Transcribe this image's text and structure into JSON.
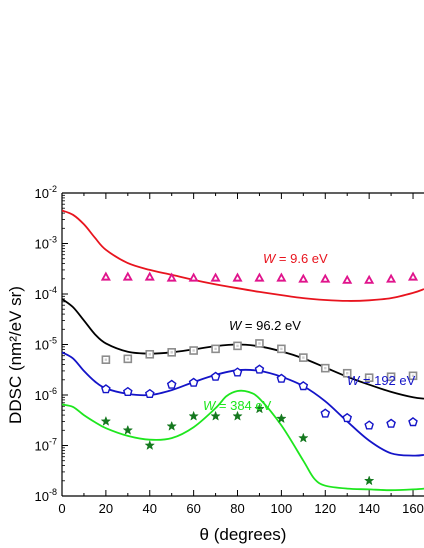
{
  "chart_data": {
    "type": "line",
    "xlabel": "θ (degrees)",
    "ylabel": "DDSC (nm²/eV sr)",
    "xlim": [
      0,
      165
    ],
    "ylim_log10": [
      -8,
      -2
    ],
    "y_scale": "log",
    "x_ticks": [
      0,
      20,
      40,
      60,
      80,
      100,
      120,
      140,
      160
    ],
    "y_ticks": [
      {
        "base": "10",
        "exp": "-2",
        "value": 0.01
      },
      {
        "base": "10",
        "exp": "-3",
        "value": 0.001
      },
      {
        "base": "10",
        "exp": "-4",
        "value": 0.0001
      },
      {
        "base": "10",
        "exp": "-5",
        "value": 1e-05
      },
      {
        "base": "10",
        "exp": "-6",
        "value": 1e-06
      },
      {
        "base": "10",
        "exp": "-7",
        "value": 1e-07
      },
      {
        "base": "10",
        "exp": "-8",
        "value": 1e-08
      }
    ],
    "grid": false,
    "series": [
      {
        "label": "W = 9.6 eV",
        "label_var": "W",
        "label_rest": " = 9.6 eV",
        "color": "#e8141e",
        "curve": [
          [
            0,
            0.0045
          ],
          [
            5,
            0.0037
          ],
          [
            10,
            0.0024
          ],
          [
            15,
            0.0013
          ],
          [
            20,
            0.00075
          ],
          [
            30,
            0.00041
          ],
          [
            40,
            0.0003
          ],
          [
            50,
            0.00024
          ],
          [
            60,
            0.00019
          ],
          [
            70,
            0.000155
          ],
          [
            80,
            0.00013
          ],
          [
            90,
            0.00011
          ],
          [
            100,
            9.5e-05
          ],
          [
            110,
            8.3e-05
          ],
          [
            120,
            7.6e-05
          ],
          [
            130,
            7.3e-05
          ],
          [
            140,
            7.5e-05
          ],
          [
            150,
            8.3e-05
          ],
          [
            160,
            0.000105
          ],
          [
            165,
            0.000125
          ]
        ],
        "marker": "triangle",
        "marker_color": "#e0148c",
        "points": [
          [
            20,
            0.00022
          ],
          [
            30,
            0.00022
          ],
          [
            40,
            0.00022
          ],
          [
            50,
            0.00021
          ],
          [
            60,
            0.00021
          ],
          [
            70,
            0.00021
          ],
          [
            80,
            0.00021
          ],
          [
            90,
            0.00021
          ],
          [
            100,
            0.00021
          ],
          [
            110,
            0.0002
          ],
          [
            120,
            0.0002
          ],
          [
            130,
            0.00019
          ],
          [
            140,
            0.00019
          ],
          [
            150,
            0.0002
          ],
          [
            160,
            0.00022
          ]
        ]
      },
      {
        "label": "W = 96.2 eV",
        "label_var": "W",
        "label_rest": " = 96.2 eV",
        "color": "#000000",
        "curve": [
          [
            0,
            8e-05
          ],
          [
            5,
            5.5e-05
          ],
          [
            10,
            3e-05
          ],
          [
            15,
            1.6e-05
          ],
          [
            20,
            1.05e-05
          ],
          [
            30,
            7.2e-06
          ],
          [
            40,
            6.6e-06
          ],
          [
            50,
            7e-06
          ],
          [
            60,
            8e-06
          ],
          [
            70,
            9.3e-06
          ],
          [
            80,
            1e-05
          ],
          [
            90,
            9.2e-06
          ],
          [
            100,
            7.3e-06
          ],
          [
            110,
            5.3e-06
          ],
          [
            120,
            3.5e-06
          ],
          [
            130,
            2.3e-06
          ],
          [
            140,
            1.6e-06
          ],
          [
            150,
            1.15e-06
          ],
          [
            160,
            9e-07
          ],
          [
            165,
            8.5e-07
          ]
        ],
        "marker": "square",
        "marker_color": "#8c8c8c",
        "points": [
          [
            20,
            5e-06
          ],
          [
            30,
            5.2e-06
          ],
          [
            40,
            6.4e-06
          ],
          [
            50,
            7e-06
          ],
          [
            60,
            7.6e-06
          ],
          [
            70,
            8.2e-06
          ],
          [
            80,
            9.4e-06
          ],
          [
            90,
            1.05e-05
          ],
          [
            100,
            8.2e-06
          ],
          [
            110,
            5.5e-06
          ],
          [
            120,
            3.4e-06
          ],
          [
            130,
            2.7e-06
          ],
          [
            140,
            2.2e-06
          ],
          [
            150,
            2.3e-06
          ],
          [
            160,
            2.4e-06
          ]
        ]
      },
      {
        "label": "W = 192 eV",
        "label_var": "W",
        "label_rest": " = 192 eV",
        "color": "#1414c8",
        "curve": [
          [
            0,
            7e-06
          ],
          [
            5,
            5.3e-06
          ],
          [
            10,
            3e-06
          ],
          [
            15,
            1.85e-06
          ],
          [
            20,
            1.35e-06
          ],
          [
            30,
            1.05e-06
          ],
          [
            40,
            1e-06
          ],
          [
            50,
            1.25e-06
          ],
          [
            60,
            1.8e-06
          ],
          [
            70,
            2.5e-06
          ],
          [
            80,
            3.1e-06
          ],
          [
            90,
            3e-06
          ],
          [
            100,
            2.3e-06
          ],
          [
            110,
            1.5e-06
          ],
          [
            120,
            7.5e-07
          ],
          [
            130,
            3e-07
          ],
          [
            140,
            1.25e-07
          ],
          [
            150,
            7e-08
          ],
          [
            160,
            6.3e-08
          ],
          [
            165,
            6.5e-08
          ]
        ],
        "marker": "pentagon",
        "marker_color": "#1414c8",
        "points": [
          [
            20,
            1.3e-06
          ],
          [
            30,
            1.15e-06
          ],
          [
            40,
            1.05e-06
          ],
          [
            50,
            1.6e-06
          ],
          [
            60,
            1.75e-06
          ],
          [
            70,
            2.3e-06
          ],
          [
            80,
            2.8e-06
          ],
          [
            90,
            3.2e-06
          ],
          [
            100,
            2.1e-06
          ],
          [
            110,
            1.5e-06
          ],
          [
            120,
            4.3e-07
          ],
          [
            130,
            3.5e-07
          ],
          [
            140,
            2.5e-07
          ],
          [
            150,
            2.7e-07
          ],
          [
            160,
            2.9e-07
          ]
        ]
      },
      {
        "label": "W = 384 eV",
        "label_var": "W",
        "label_rest": " = 384 eV",
        "color": "#1ee61e",
        "curve": [
          [
            0,
            6.5e-07
          ],
          [
            5,
            5.8e-07
          ],
          [
            10,
            4e-07
          ],
          [
            15,
            2.9e-07
          ],
          [
            20,
            2.2e-07
          ],
          [
            30,
            1.55e-07
          ],
          [
            40,
            1.3e-07
          ],
          [
            50,
            1.4e-07
          ],
          [
            60,
            2.3e-07
          ],
          [
            70,
            5.5e-07
          ],
          [
            75,
            9.5e-07
          ],
          [
            80,
            1.2e-06
          ],
          [
            85,
            1.15e-06
          ],
          [
            90,
            8.5e-07
          ],
          [
            100,
            2.5e-07
          ],
          [
            110,
            5e-08
          ],
          [
            115,
            2.2e-08
          ],
          [
            120,
            1.6e-08
          ],
          [
            130,
            1.4e-08
          ],
          [
            140,
            1.35e-08
          ],
          [
            150,
            1.3e-08
          ],
          [
            160,
            1.35e-08
          ],
          [
            165,
            1.4e-08
          ]
        ],
        "marker": "star",
        "marker_color": "#14781e",
        "points": [
          [
            20,
            3e-07
          ],
          [
            30,
            2e-07
          ],
          [
            40,
            1e-07
          ],
          [
            50,
            2.4e-07
          ],
          [
            60,
            3.8e-07
          ],
          [
            70,
            3.8e-07
          ],
          [
            80,
            3.8e-07
          ],
          [
            90,
            5.3e-07
          ],
          [
            100,
            3.4e-07
          ],
          [
            110,
            1.4e-07
          ],
          [
            140,
            2e-08
          ]
        ]
      }
    ]
  }
}
